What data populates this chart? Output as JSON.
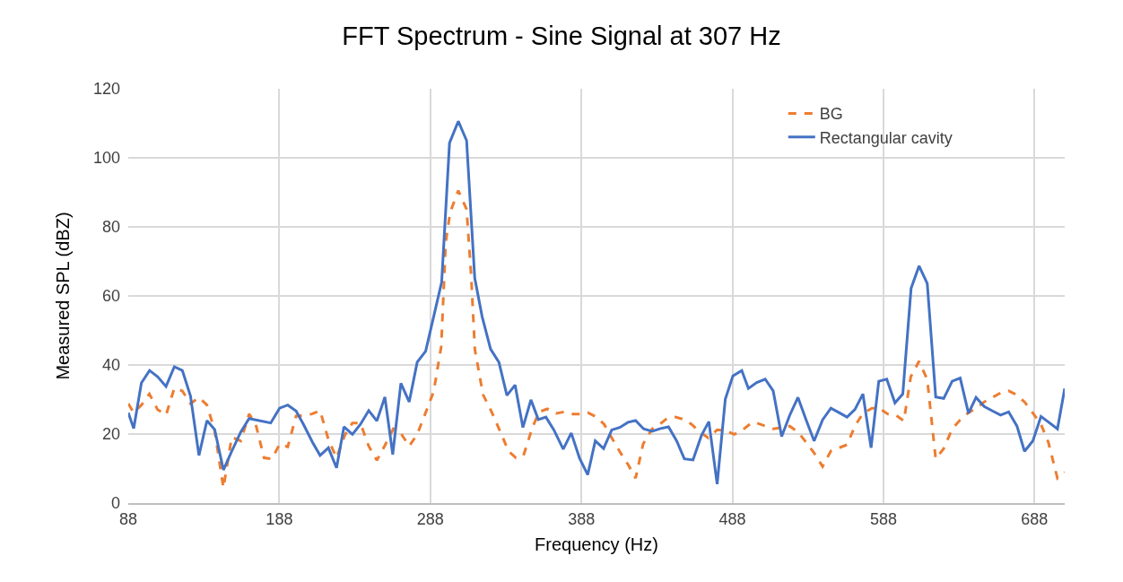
{
  "chart_data": {
    "type": "line",
    "title": "FFT Spectrum - Sine Signal at 307 Hz",
    "xlabel": "Frequency (Hz)",
    "ylabel": "Measured SPL (dBZ)",
    "xlim": [
      88,
      708
    ],
    "xticks": [
      88,
      188,
      288,
      388,
      488,
      588,
      688
    ],
    "ylim": [
      0,
      120
    ],
    "yticks": [
      0,
      20,
      40,
      60,
      80,
      100,
      120
    ],
    "grid": true,
    "legend": "top right",
    "marker": "none",
    "series": [
      {
        "name": "BG",
        "color": "#ed7d31",
        "line_style": "dashed",
        "x": [
          88,
          91.6,
          96.7,
          102,
          107.4,
          113,
          118.5,
          123.8,
          129.2,
          134.8,
          140.1,
          145.2,
          151,
          156.5,
          162.5,
          168,
          172.4,
          177.9,
          183.2,
          188.2,
          193.6,
          199.1,
          204.4,
          209.6,
          215,
          220.5,
          225.9,
          231.4,
          236.4,
          241.7,
          247.2,
          252.6,
          257.9,
          263.5,
          268.5,
          274,
          279.3,
          284.9,
          290.2,
          295.2,
          298.2,
          301.1,
          306.5,
          312,
          315,
          317.5,
          322.9,
          328.8,
          333.8,
          339.8,
          344.7,
          349.6,
          355.6,
          360,
          365.5,
          371.4,
          376.4,
          382.3,
          387.3,
          392.2,
          398.2,
          403.1,
          408.1,
          414,
          419,
          423.9,
          428.9,
          434.8,
          439.8,
          444.7,
          450.3,
          456.2,
          461,
          466.5,
          472,
          477.9,
          483.3,
          489.2,
          494.2,
          501.1,
          504.1,
          515,
          525.9,
          531.4,
          536.8,
          542.1,
          547.7,
          553.2,
          558.6,
          563.9,
          569.1,
          574.4,
          580.4,
          585.3,
          590.8,
          596.2,
          601.5,
          606.1,
          611.6,
          617,
          622.6,
          627.9,
          633.5,
          638.8,
          644.3,
          649.7,
          654.7,
          660.2,
          665.5,
          670.9,
          676,
          681.4,
          686.7,
          692.3,
          697.2,
          703.2,
          708
        ],
        "values": [
          28.8,
          26.2,
          28.4,
          31.6,
          27.1,
          25.5,
          33.3,
          32.5,
          28.8,
          30.6,
          28.4,
          21,
          4.4,
          19.1,
          18,
          25.8,
          22.8,
          13.1,
          12.8,
          17.1,
          16.3,
          25.2,
          25.4,
          25.8,
          26.8,
          18.4,
          13.1,
          19.7,
          23.2,
          23.2,
          16.5,
          12.4,
          16.7,
          21.5,
          20.2,
          16.5,
          19.9,
          26.2,
          32.3,
          45.3,
          75.6,
          84.2,
          90.5,
          85.1,
          66.1,
          44.4,
          31.4,
          26.2,
          21.2,
          15,
          13.1,
          13.7,
          21.9,
          26.4,
          27.3,
          26,
          26.4,
          25.8,
          25.8,
          26.2,
          24.9,
          22.8,
          18.9,
          14.5,
          11.1,
          7.2,
          17.1,
          21.5,
          22.8,
          24.5,
          24.9,
          24.2,
          22.8,
          20.6,
          18.9,
          21.2,
          21,
          19.9,
          21,
          23.4,
          23.2,
          21.5,
          22.3,
          20.6,
          17.6,
          14.5,
          10.6,
          15.1,
          16,
          16.9,
          22.3,
          26,
          27.5,
          27.5,
          25.8,
          25.5,
          23.8,
          36.6,
          41.1,
          35.8,
          12.8,
          15.8,
          21.5,
          24.1,
          26.2,
          27.5,
          29.3,
          30.6,
          31.9,
          32.5,
          31.4,
          29.3,
          26.2,
          22.8,
          17.6,
          7.2,
          8.9
        ]
      },
      {
        "name": "Rectangular cavity",
        "color": "#4472c4",
        "line_style": "solid",
        "x": [
          88,
          91.6,
          96.7,
          102.1,
          107.4,
          113,
          118.5,
          123.8,
          129.2,
          134.8,
          140.1,
          145.2,
          151,
          156.5,
          162.5,
          168,
          182.3,
          188.2,
          193.6,
          199.1,
          204,
          210,
          215,
          220.5,
          225.9,
          230.8,
          236.4,
          241.7,
          247.2,
          252.6,
          257.9,
          263.1,
          268.5,
          274,
          279.3,
          284.9,
          290.2,
          295.5,
          300.7,
          306.5,
          312,
          317.4,
          322.3,
          327.9,
          333.4,
          338.7,
          344.1,
          349.3,
          354.6,
          359.5,
          364.5,
          369.8,
          376,
          381.3,
          386.7,
          392.2,
          397.2,
          402.7,
          408.1,
          413.4,
          418.9,
          423.9,
          429.2,
          434.8,
          440.4,
          445.7,
          451.1,
          456.2,
          461.9,
          467.5,
          472.4,
          477.9,
          483.3,
          488.3,
          494.2,
          498.6,
          504.1,
          509.7,
          515,
          520.6,
          525.9,
          531.4,
          536.8,
          542.1,
          547.7,
          553.2,
          558.6,
          563.9,
          569.1,
          574.4,
          579.8,
          584.9,
          590.2,
          595.6,
          600.8,
          606.3,
          611.6,
          617,
          622.6,
          627.9,
          633.5,
          638.8,
          644.3,
          649.3,
          654.7,
          660.2,
          665.5,
          670.9,
          676.4,
          681.4,
          686.9,
          692.3,
          703.2,
          708
        ],
        "values": [
          26.2,
          21.6,
          34.8,
          38.4,
          36.6,
          33.8,
          39.5,
          38.4,
          31,
          13.8,
          23.9,
          21.3,
          9.6,
          15,
          20.6,
          24.5,
          23.2,
          27.5,
          28.4,
          26.7,
          22.8,
          17.6,
          13.8,
          16,
          10.2,
          22.1,
          19.9,
          22.8,
          26.8,
          23.8,
          30.7,
          14.1,
          34.7,
          29.3,
          40.8,
          44,
          54,
          64,
          104.3,
          110.6,
          105,
          65.2,
          54,
          44.6,
          40.8,
          31.2,
          34.2,
          21.9,
          29.9,
          24.2,
          24.9,
          21.2,
          15.6,
          20.3,
          13.1,
          8.2,
          18,
          15.8,
          21.2,
          21.9,
          23.4,
          23.9,
          21.5,
          20.8,
          21.6,
          22.1,
          18,
          12.8,
          12.5,
          19.6,
          23.6,
          5.5,
          30.1,
          36.8,
          38.4,
          33.2,
          34.9,
          35.9,
          32.5,
          19.3,
          25.4,
          30.6,
          24.1,
          18,
          24.1,
          27.5,
          26.2,
          24.9,
          27.1,
          31.6,
          16,
          35.3,
          35.9,
          29,
          31.6,
          62.2,
          68.7,
          63.6,
          30.7,
          30.3,
          35.3,
          36.2,
          26,
          30.6,
          28,
          26.7,
          25.5,
          26.4,
          22.3,
          15,
          18,
          25.1,
          21.5,
          33.2
        ]
      }
    ]
  }
}
